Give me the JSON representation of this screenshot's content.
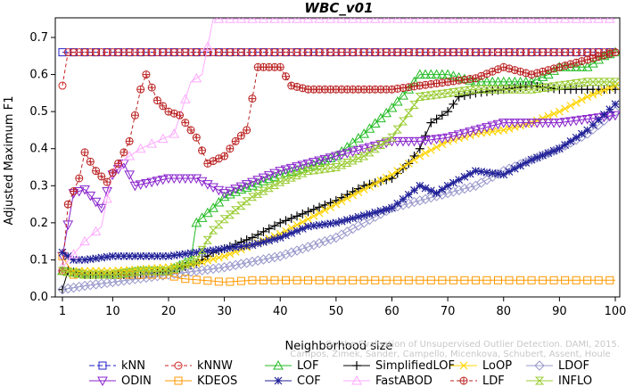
{
  "chart_data": {
    "type": "line",
    "title": "WBC_v01",
    "xlabel": "Neighborhood size",
    "ylabel": "Adjusted Maximum F1",
    "xlim": [
      0,
      100
    ],
    "ylim": [
      0,
      0.75
    ],
    "x_ticks": [
      "1",
      "10",
      "20",
      "30",
      "40",
      "50",
      "60",
      "70",
      "80",
      "90",
      "100"
    ],
    "y_ticks": [
      "0.0",
      "0.1",
      "0.2",
      "0.3",
      "0.4",
      "0.5",
      "0.6",
      "0.7"
    ],
    "grid": false,
    "legend_placement": "bottom",
    "watermark": [
      "Campos, Zimek, Sander, Campello, Micenkova, Schubert, Assent, Houle",
      "On the Evaluation of Unsupervised Outlier Detection. DAMI, 2015."
    ],
    "series": [
      {
        "name": "kNN",
        "color": "#2222cc",
        "marker": "square",
        "dash": "6,3",
        "points": [
          [
            1,
            0.66
          ],
          [
            100,
            0.66
          ]
        ]
      },
      {
        "name": "kNNW",
        "color": "#cc2222",
        "marker": "circle",
        "dash": "4,3",
        "points": [
          [
            1,
            0.57
          ],
          [
            2,
            0.66
          ],
          [
            100,
            0.66
          ]
        ]
      },
      {
        "name": "LOF",
        "color": "#22bb22",
        "marker": "triangle-up",
        "dash": "",
        "points": [
          [
            1,
            0.07
          ],
          [
            5,
            0.06
          ],
          [
            10,
            0.06
          ],
          [
            15,
            0.07
          ],
          [
            20,
            0.07
          ],
          [
            24,
            0.1
          ],
          [
            25,
            0.2
          ],
          [
            28,
            0.24
          ],
          [
            30,
            0.27
          ],
          [
            33,
            0.29
          ],
          [
            35,
            0.3
          ],
          [
            40,
            0.33
          ],
          [
            45,
            0.35
          ],
          [
            50,
            0.38
          ],
          [
            55,
            0.44
          ],
          [
            60,
            0.51
          ],
          [
            63,
            0.56
          ],
          [
            65,
            0.6
          ],
          [
            70,
            0.6
          ],
          [
            75,
            0.58
          ],
          [
            80,
            0.58
          ],
          [
            85,
            0.58
          ],
          [
            88,
            0.6
          ],
          [
            90,
            0.62
          ],
          [
            95,
            0.62
          ],
          [
            98,
            0.65
          ],
          [
            100,
            0.66
          ]
        ]
      },
      {
        "name": "SimplifiedLOF",
        "color": "#000000",
        "marker": "plus",
        "dash": "",
        "points": [
          [
            1,
            0.02
          ],
          [
            2,
            0.07
          ],
          [
            5,
            0.06
          ],
          [
            10,
            0.06
          ],
          [
            15,
            0.06
          ],
          [
            20,
            0.07
          ],
          [
            25,
            0.09
          ],
          [
            28,
            0.12
          ],
          [
            30,
            0.13
          ],
          [
            35,
            0.16
          ],
          [
            40,
            0.2
          ],
          [
            45,
            0.23
          ],
          [
            50,
            0.26
          ],
          [
            55,
            0.3
          ],
          [
            60,
            0.32
          ],
          [
            63,
            0.36
          ],
          [
            65,
            0.4
          ],
          [
            67,
            0.47
          ],
          [
            70,
            0.5
          ],
          [
            72,
            0.54
          ],
          [
            75,
            0.55
          ],
          [
            80,
            0.56
          ],
          [
            85,
            0.57
          ],
          [
            90,
            0.56
          ],
          [
            95,
            0.56
          ],
          [
            100,
            0.56
          ]
        ]
      },
      {
        "name": "LoOP",
        "color": "#ffd400",
        "marker": "x",
        "dash": "",
        "points": [
          [
            1,
            0.07
          ],
          [
            10,
            0.07
          ],
          [
            20,
            0.08
          ],
          [
            25,
            0.09
          ],
          [
            30,
            0.11
          ],
          [
            35,
            0.14
          ],
          [
            40,
            0.17
          ],
          [
            45,
            0.21
          ],
          [
            50,
            0.25
          ],
          [
            55,
            0.29
          ],
          [
            60,
            0.33
          ],
          [
            65,
            0.38
          ],
          [
            70,
            0.42
          ],
          [
            75,
            0.44
          ],
          [
            80,
            0.45
          ],
          [
            85,
            0.47
          ],
          [
            90,
            0.5
          ],
          [
            95,
            0.54
          ],
          [
            100,
            0.57
          ]
        ]
      },
      {
        "name": "LDOF",
        "color": "#9999cc",
        "marker": "diamond",
        "dash": "",
        "points": [
          [
            1,
            0.02
          ],
          [
            5,
            0.03
          ],
          [
            10,
            0.04
          ],
          [
            20,
            0.06
          ],
          [
            30,
            0.08
          ],
          [
            40,
            0.11
          ],
          [
            50,
            0.16
          ],
          [
            55,
            0.2
          ],
          [
            60,
            0.24
          ],
          [
            65,
            0.26
          ],
          [
            70,
            0.28
          ],
          [
            75,
            0.3
          ],
          [
            80,
            0.34
          ],
          [
            85,
            0.37
          ],
          [
            90,
            0.4
          ],
          [
            95,
            0.44
          ],
          [
            100,
            0.5
          ]
        ]
      },
      {
        "name": "ODIN",
        "color": "#8822cc",
        "marker": "triangle-down",
        "dash": "",
        "points": [
          [
            1,
            0.11
          ],
          [
            3,
            0.28
          ],
          [
            5,
            0.29
          ],
          [
            8,
            0.24
          ],
          [
            10,
            0.33
          ],
          [
            12,
            0.36
          ],
          [
            14,
            0.3
          ],
          [
            20,
            0.32
          ],
          [
            25,
            0.32
          ],
          [
            30,
            0.28
          ],
          [
            35,
            0.31
          ],
          [
            40,
            0.34
          ],
          [
            45,
            0.36
          ],
          [
            50,
            0.38
          ],
          [
            55,
            0.4
          ],
          [
            60,
            0.42
          ],
          [
            65,
            0.42
          ],
          [
            70,
            0.43
          ],
          [
            75,
            0.45
          ],
          [
            80,
            0.47
          ],
          [
            85,
            0.47
          ],
          [
            90,
            0.47
          ],
          [
            95,
            0.48
          ],
          [
            100,
            0.49
          ]
        ]
      },
      {
        "name": "KDEOS",
        "color": "#ff9900",
        "marker": "square",
        "dash": "",
        "points": [
          [
            1,
            0.11
          ],
          [
            3,
            0.06
          ],
          [
            10,
            0.06
          ],
          [
            20,
            0.06
          ],
          [
            22,
            0.05
          ],
          [
            30,
            0.04
          ],
          [
            35,
            0.045
          ],
          [
            100,
            0.045
          ]
        ]
      },
      {
        "name": "COF",
        "color": "#222299",
        "marker": "asterisk",
        "dash": "",
        "points": [
          [
            1,
            0.12
          ],
          [
            3,
            0.1
          ],
          [
            5,
            0.1
          ],
          [
            10,
            0.11
          ],
          [
            15,
            0.11
          ],
          [
            20,
            0.11
          ],
          [
            25,
            0.12
          ],
          [
            30,
            0.13
          ],
          [
            35,
            0.14
          ],
          [
            40,
            0.16
          ],
          [
            45,
            0.19
          ],
          [
            50,
            0.2
          ],
          [
            55,
            0.22
          ],
          [
            60,
            0.24
          ],
          [
            65,
            0.3
          ],
          [
            68,
            0.28
          ],
          [
            70,
            0.3
          ],
          [
            75,
            0.34
          ],
          [
            80,
            0.33
          ],
          [
            85,
            0.37
          ],
          [
            90,
            0.4
          ],
          [
            95,
            0.45
          ],
          [
            100,
            0.52
          ]
        ]
      },
      {
        "name": "FastABOD",
        "color": "#ffaaff",
        "marker": "triangle-up",
        "dash": "",
        "points": [
          [
            1,
            0.08
          ],
          [
            5,
            0.15
          ],
          [
            8,
            0.19
          ],
          [
            10,
            0.34
          ],
          [
            12,
            0.37
          ],
          [
            15,
            0.4
          ],
          [
            18,
            0.42
          ],
          [
            21,
            0.44
          ],
          [
            24,
            0.58
          ],
          [
            26,
            0.6
          ],
          [
            28,
            0.75
          ],
          [
            100,
            0.75
          ]
        ]
      },
      {
        "name": "LDF",
        "color": "#bb2222",
        "marker": "circle-plus",
        "dash": "4,3",
        "points": [
          [
            1,
            0.07
          ],
          [
            2,
            0.25
          ],
          [
            4,
            0.32
          ],
          [
            5,
            0.39
          ],
          [
            7,
            0.34
          ],
          [
            9,
            0.31
          ],
          [
            11,
            0.36
          ],
          [
            13,
            0.42
          ],
          [
            15,
            0.56
          ],
          [
            16,
            0.6
          ],
          [
            18,
            0.53
          ],
          [
            20,
            0.5
          ],
          [
            22,
            0.49
          ],
          [
            24,
            0.45
          ],
          [
            25,
            0.43
          ],
          [
            27,
            0.36
          ],
          [
            30,
            0.38
          ],
          [
            32,
            0.42
          ],
          [
            34,
            0.45
          ],
          [
            36,
            0.62
          ],
          [
            40,
            0.62
          ],
          [
            42,
            0.57
          ],
          [
            45,
            0.56
          ],
          [
            50,
            0.56
          ],
          [
            55,
            0.56
          ],
          [
            60,
            0.56
          ],
          [
            65,
            0.57
          ],
          [
            70,
            0.58
          ],
          [
            75,
            0.59
          ],
          [
            80,
            0.62
          ],
          [
            85,
            0.6
          ],
          [
            90,
            0.62
          ],
          [
            95,
            0.64
          ],
          [
            100,
            0.66
          ]
        ]
      },
      {
        "name": "INFLO",
        "color": "#99cc33",
        "marker": "hourglass",
        "dash": "",
        "points": [
          [
            1,
            0.07
          ],
          [
            5,
            0.06
          ],
          [
            10,
            0.06
          ],
          [
            15,
            0.07
          ],
          [
            20,
            0.07
          ],
          [
            25,
            0.1
          ],
          [
            28,
            0.18
          ],
          [
            30,
            0.21
          ],
          [
            35,
            0.27
          ],
          [
            40,
            0.31
          ],
          [
            45,
            0.34
          ],
          [
            50,
            0.35
          ],
          [
            55,
            0.38
          ],
          [
            60,
            0.43
          ],
          [
            65,
            0.54
          ],
          [
            70,
            0.55
          ],
          [
            75,
            0.56
          ],
          [
            80,
            0.56
          ],
          [
            85,
            0.56
          ],
          [
            90,
            0.57
          ],
          [
            95,
            0.58
          ],
          [
            100,
            0.58
          ]
        ]
      }
    ],
    "legend_rows": [
      [
        "kNN",
        "kNNW",
        "LOF",
        "SimplifiedLOF",
        "LoOP",
        "LDOF"
      ],
      [
        "ODIN",
        "KDEOS",
        "COF",
        "FastABOD",
        "LDF",
        "INFLO"
      ]
    ]
  }
}
